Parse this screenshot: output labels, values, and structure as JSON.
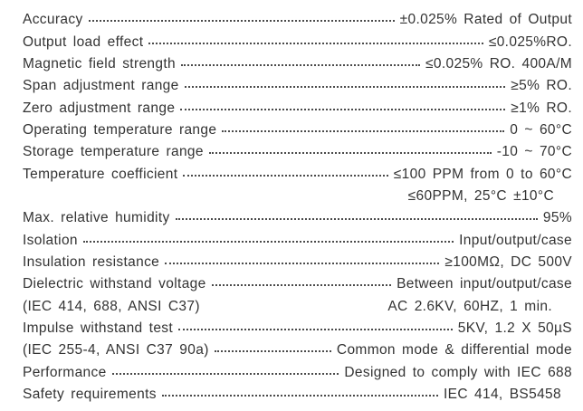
{
  "page": {
    "background_color": "#ffffff",
    "text_color": "#333333",
    "leader_dot_color": "#4a4a4a",
    "kind": "product-specification-sheet"
  },
  "spec_rows": [
    {
      "label": "Accuracy",
      "value": "±0.025% Rated of Output",
      "leader": true
    },
    {
      "label": "Output load effect",
      "value": "≤0.025%RO.",
      "leader": true
    },
    {
      "label": "Magnetic field strength",
      "value": "≤0.025% RO.  400A/M",
      "leader": true
    },
    {
      "label": "Span adjustment range",
      "value": "≥5%  RO.",
      "leader": true
    },
    {
      "label": "Zero adjustment range",
      "value": "≥1%  RO.",
      "leader": true
    },
    {
      "label": "Operating temperature range",
      "value": "0 ~ 60°C",
      "leader": true
    },
    {
      "label": "Storage temperature range",
      "value": "-10 ~ 70°C",
      "leader": true
    },
    {
      "label": "Temperature coefficient",
      "value": "≤100 PPM  from 0  to  60°C",
      "leader": true
    },
    {
      "label": "",
      "value": "≤60PPM, 25°C ±10°C",
      "leader": false
    },
    {
      "label": "Max. relative humidity",
      "value": "95%",
      "leader": true
    },
    {
      "label": "Isolation",
      "value": "Input/output/case",
      "leader": true
    },
    {
      "label": "Insulation resistance",
      "value": "≥100MΩ, DC 500V",
      "leader": true
    },
    {
      "label": "Dielectric withstand voltage",
      "value": "Between input/output/case",
      "leader": true
    },
    {
      "label": "(IEC 414, 688, ANSI C37)",
      "value": "AC 2.6KV, 60HZ, 1 min.",
      "leader": false
    },
    {
      "label": "Impulse withstand test",
      "value": "5KV,  1.2  X  50µS",
      "leader": true
    },
    {
      "label": "(IEC 255-4, ANSI C37 90a)",
      "value": "Common mode & differential mode",
      "leader": true
    },
    {
      "label": "Performance",
      "value": "Designed to comply with IEC 688",
      "leader": true
    },
    {
      "label": "Safety requirements",
      "value": "IEC 414, BS5458",
      "leader": true
    }
  ]
}
